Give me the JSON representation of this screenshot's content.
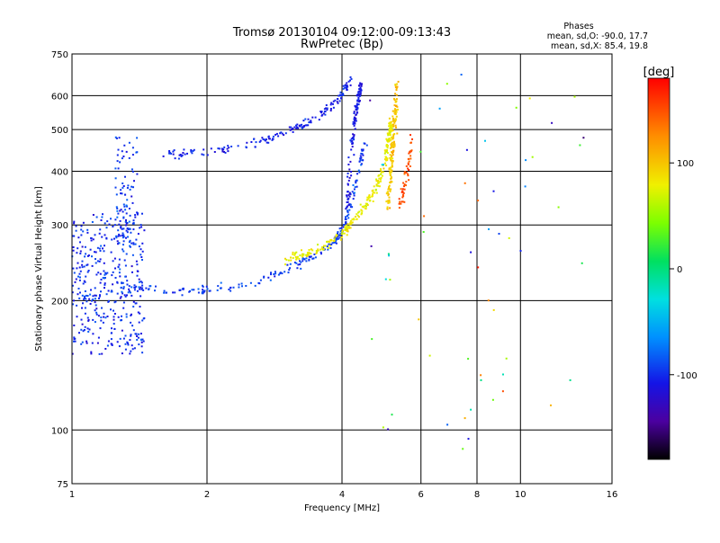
{
  "chart_data": {
    "type": "scatter",
    "title": "Tromsø 20130104 09:12:00-09:13:43",
    "subtitle": "RwPretec (Bp)",
    "info": {
      "heading": "Phases",
      "line1": "mean, sd,O: -90.0, 17.7",
      "line2": "mean, sd,X: 85.4, 19.8"
    },
    "xlabel": "Frequency [MHz]",
    "ylabel": "Stationary phase Virtual Height [km]",
    "x_scale": "log",
    "y_scale": "log",
    "xlim": [
      1,
      16
    ],
    "ylim": [
      75,
      750
    ],
    "x_ticks": [
      {
        "value": 1,
        "label": "1"
      },
      {
        "value": 2,
        "label": "2"
      },
      {
        "value": 4,
        "label": "4"
      },
      {
        "value": 6,
        "label": "6"
      },
      {
        "value": 8,
        "label": "8"
      },
      {
        "value": 10,
        "label": "10"
      },
      {
        "value": 16,
        "label": "16"
      }
    ],
    "y_ticks": [
      {
        "value": 75,
        "label": "75"
      },
      {
        "value": 100,
        "label": "100"
      },
      {
        "value": 200,
        "label": "200"
      },
      {
        "value": 300,
        "label": "300"
      },
      {
        "value": 400,
        "label": "400"
      },
      {
        "value": 500,
        "label": "500"
      },
      {
        "value": 600,
        "label": "600"
      },
      {
        "value": 750,
        "label": "750"
      }
    ],
    "grid": true,
    "colorbar": {
      "label": "[deg]",
      "range": [
        -180,
        180
      ],
      "ticks": [
        {
          "value": 100,
          "label": "100"
        },
        {
          "value": 0,
          "label": "0"
        },
        {
          "value": -100,
          "label": "-100"
        }
      ]
    },
    "traces": [
      {
        "name": "E region band",
        "x_range": [
          1.0,
          1.45
        ],
        "h_range": [
          150,
          320
        ],
        "phase": -100,
        "count": 380
      },
      {
        "name": "Low freq echoes",
        "x_range": [
          1.25,
          1.4
        ],
        "h_range": [
          260,
          480
        ],
        "phase": -95,
        "count": 90
      },
      {
        "name": "F1 trace",
        "points": [
          [
            1.05,
            200
          ],
          [
            1.3,
            212
          ],
          [
            1.6,
            210
          ],
          [
            2.0,
            212
          ],
          [
            2.5,
            218
          ],
          [
            3.0,
            235
          ],
          [
            3.5,
            255
          ],
          [
            3.85,
            275
          ],
          [
            4.05,
            300
          ],
          [
            4.2,
            340
          ],
          [
            4.35,
            400
          ],
          [
            4.5,
            460
          ]
        ],
        "phase": -95,
        "count": 240
      },
      {
        "name": "F2 O-trace",
        "points": [
          [
            3.0,
            250
          ],
          [
            3.5,
            262
          ],
          [
            4.0,
            285
          ],
          [
            4.4,
            320
          ],
          [
            4.75,
            360
          ],
          [
            5.0,
            420
          ],
          [
            5.1,
            480
          ],
          [
            5.15,
            520
          ]
        ],
        "phase": 80,
        "count": 260
      },
      {
        "name": "upper echo band",
        "points": [
          [
            1.6,
            440
          ],
          [
            2.0,
            442
          ],
          [
            2.5,
            460
          ],
          [
            3.0,
            490
          ],
          [
            3.5,
            530
          ],
          [
            3.95,
            590
          ],
          [
            4.15,
            650
          ]
        ],
        "phase": -105,
        "count": 170
      },
      {
        "name": "O vertical cusp",
        "points": [
          [
            4.1,
            320
          ],
          [
            4.2,
            450
          ],
          [
            4.3,
            550
          ],
          [
            4.4,
            640
          ]
        ],
        "phase": -110,
        "count": 120
      },
      {
        "name": "X vertical cusp",
        "points": [
          [
            5.05,
            320
          ],
          [
            5.15,
            420
          ],
          [
            5.25,
            520
          ],
          [
            5.3,
            640
          ]
        ],
        "phase": 100,
        "count": 150
      },
      {
        "name": "X tail",
        "points": [
          [
            5.4,
            330
          ],
          [
            5.6,
            400
          ],
          [
            5.75,
            480
          ]
        ],
        "phase": 150,
        "count": 50
      },
      {
        "name": "sparse noise",
        "x_range": [
          4.6,
          14.5
        ],
        "h_range": [
          90,
          680
        ],
        "phase": 0,
        "count": 60
      }
    ]
  }
}
